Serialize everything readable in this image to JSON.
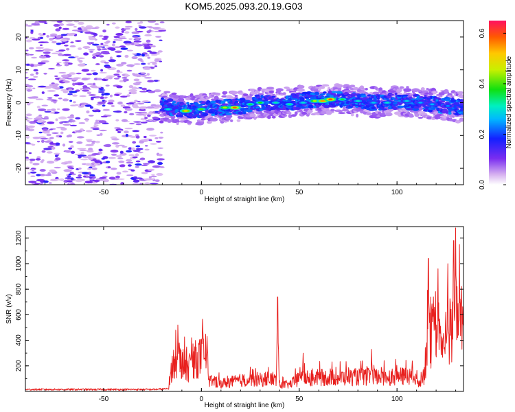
{
  "chart_data": [
    {
      "type": "heatmap",
      "title": "KOM5.2025.093.20.19.G03",
      "xlabel": "Height of straight line (km)",
      "ylabel": "Frequency (Hz)",
      "xlim": [
        -90,
        134
      ],
      "ylim": [
        -25,
        25
      ],
      "x_ticks": [
        -50,
        0,
        50,
        100
      ],
      "y_ticks": [
        -20,
        -10,
        0,
        10,
        20
      ],
      "colorbar": {
        "label": "Normalized spectral amplitude",
        "range": [
          0.0,
          0.65
        ],
        "ticks": [
          0.0,
          0.2,
          0.4,
          0.6
        ]
      },
      "noise_region_x": [
        -90,
        -20
      ],
      "signal_track": [
        {
          "x": -20,
          "f": -0.5
        },
        {
          "x": -10,
          "f": -2.5
        },
        {
          "x": 0,
          "f": -2.0
        },
        {
          "x": 10,
          "f": -1.5
        },
        {
          "x": 20,
          "f": -1.0
        },
        {
          "x": 30,
          "f": 0.0
        },
        {
          "x": 40,
          "f": 0.0
        },
        {
          "x": 50,
          "f": 0.5
        },
        {
          "x": 60,
          "f": 1.0
        },
        {
          "x": 70,
          "f": 1.0
        },
        {
          "x": 80,
          "f": 0.5
        },
        {
          "x": 90,
          "f": 0.0
        },
        {
          "x": 100,
          "f": 0.5
        },
        {
          "x": 110,
          "f": 0.0
        },
        {
          "x": 120,
          "f": -0.5
        },
        {
          "x": 134,
          "f": -1.5
        }
      ],
      "peaks": [
        {
          "x": -17,
          "f": -2.0,
          "amp": 0.3
        },
        {
          "x": -8,
          "f": -2.5,
          "amp": 0.52
        },
        {
          "x": 0,
          "f": -2.0,
          "amp": 0.4
        },
        {
          "x": 12,
          "f": -1.5,
          "amp": 0.45
        },
        {
          "x": 17,
          "f": -1.5,
          "amp": 0.58
        },
        {
          "x": 25,
          "f": -0.5,
          "amp": 0.35
        },
        {
          "x": 30,
          "f": 0.0,
          "amp": 0.38
        },
        {
          "x": 38,
          "f": 0.0,
          "amp": 0.32
        },
        {
          "x": 45,
          "f": -0.5,
          "amp": 0.33
        },
        {
          "x": 52,
          "f": 0.0,
          "amp": 0.3
        },
        {
          "x": 58,
          "f": 0.5,
          "amp": 0.45
        },
        {
          "x": 62,
          "f": 0.5,
          "amp": 0.55
        },
        {
          "x": 66,
          "f": 1.0,
          "amp": 0.6
        },
        {
          "x": 72,
          "f": 1.0,
          "amp": 0.36
        },
        {
          "x": 80,
          "f": 0.5,
          "amp": 0.3
        },
        {
          "x": 88,
          "f": 0.0,
          "amp": 0.28
        },
        {
          "x": 95,
          "f": 0.0,
          "amp": 0.3
        },
        {
          "x": 105,
          "f": 0.5,
          "amp": 0.28
        },
        {
          "x": 112,
          "f": 0.0,
          "amp": 0.26
        },
        {
          "x": 118,
          "f": -0.5,
          "amp": 0.26
        },
        {
          "x": 126,
          "f": -1.0,
          "amp": 0.24
        }
      ]
    },
    {
      "type": "line",
      "xlabel": "Height of straight line (km)",
      "ylabel": "SNR (v/v)",
      "xlim": [
        -90,
        134
      ],
      "ylim": [
        0,
        1290
      ],
      "x_ticks": [
        -50,
        0,
        50,
        100
      ],
      "y_ticks": [
        200,
        400,
        600,
        800,
        1000,
        1200
      ],
      "color": "#e8201e",
      "profile": [
        {
          "x": -90,
          "y": 15
        },
        {
          "x": -25,
          "y": 15
        },
        {
          "x": -17,
          "y": 20
        },
        {
          "x": -15,
          "y": 220
        },
        {
          "x": -12,
          "y": 320
        },
        {
          "x": -10,
          "y": 250
        },
        {
          "x": -7,
          "y": 200
        },
        {
          "x": -4,
          "y": 270
        },
        {
          "x": 0,
          "y": 300
        },
        {
          "x": 3,
          "y": 290
        },
        {
          "x": 4,
          "y": 90
        },
        {
          "x": 10,
          "y": 70
        },
        {
          "x": 20,
          "y": 95
        },
        {
          "x": 30,
          "y": 100
        },
        {
          "x": 37,
          "y": 110
        },
        {
          "x": 40,
          "y": 60
        },
        {
          "x": 45,
          "y": 60
        },
        {
          "x": 50,
          "y": 110
        },
        {
          "x": 60,
          "y": 120
        },
        {
          "x": 70,
          "y": 120
        },
        {
          "x": 80,
          "y": 125
        },
        {
          "x": 90,
          "y": 125
        },
        {
          "x": 100,
          "y": 130
        },
        {
          "x": 108,
          "y": 130
        },
        {
          "x": 111,
          "y": 70
        },
        {
          "x": 114,
          "y": 150
        },
        {
          "x": 116,
          "y": 520
        },
        {
          "x": 120,
          "y": 450
        },
        {
          "x": 124,
          "y": 420
        },
        {
          "x": 128,
          "y": 520
        },
        {
          "x": 131,
          "y": 620
        },
        {
          "x": 134,
          "y": 560
        }
      ],
      "spikes": [
        {
          "x": -12,
          "y": 520
        },
        {
          "x": -5,
          "y": 420
        },
        {
          "x": 1,
          "y": 410
        },
        {
          "x": 39,
          "y": 740
        },
        {
          "x": 52,
          "y": 300
        },
        {
          "x": 87,
          "y": 330
        },
        {
          "x": 116,
          "y": 1040
        },
        {
          "x": 121,
          "y": 960
        },
        {
          "x": 126,
          "y": 1000
        },
        {
          "x": 129,
          "y": 1180
        },
        {
          "x": 130,
          "y": 1280
        },
        {
          "x": 132,
          "y": 1150
        }
      ]
    }
  ]
}
